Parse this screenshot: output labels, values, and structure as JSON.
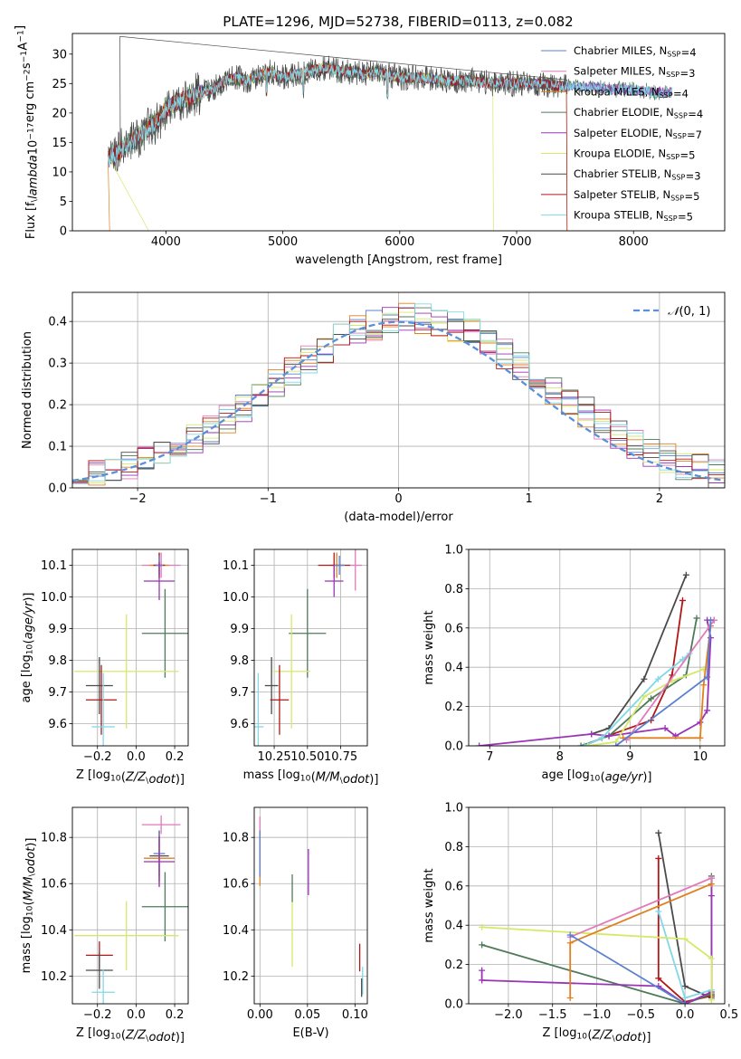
{
  "chart_data": [
    {
      "type": "line",
      "title": "PLATE=1296, MJD=52738, FIBERID=0113, z=0.082",
      "xlabel": "wavelength [Angstrom, rest frame]",
      "ylabel": "Flux [f$_\\lambda$10$^{-17}$ erg cm$^{-2}$ s$^{-1}$ A$^{-1}$]",
      "xlim": [
        3200,
        8780
      ],
      "ylim": [
        0,
        33.5
      ],
      "xticks": [
        "4000",
        "5000",
        "6000",
        "7000",
        "8000"
      ],
      "yticks": [
        "0",
        "5",
        "10",
        "15",
        "20",
        "25",
        "30"
      ],
      "legend": [
        "Chabrier MILES, N$_{SSP}$=4",
        "Salpeter MILES, N$_{SSP}$=3",
        "Kroupa MILES, N$_{SSP}$=4",
        "Chabrier ELODIE, N$_{SSP}$=4",
        "Salpeter ELODIE, N$_{SSP}$=7",
        "Kroupa ELODIE, N$_{SSP}$=5",
        "Chabrier STELIB, N$_{SSP}$=3",
        "Salpeter STELIB, N$_{SSP}$=5",
        "Kroupa STELIB, N$_{SSP}$=5"
      ],
      "legend_position": "upper right",
      "colors": [
        "#5a80d0",
        "#e07ab8",
        "#e08020",
        "#4f7a5a",
        "#9a35b5",
        "#d6e86a",
        "#4a4a4a",
        "#b01818",
        "#80d8e8"
      ],
      "continuum": {
        "x": [
          3500,
          3600,
          3700,
          3800,
          3900,
          4000,
          4100,
          4200,
          4300,
          4400,
          4500,
          4600,
          4700,
          4800,
          4900,
          5000,
          5100,
          5200,
          5300,
          5400,
          5500,
          5600,
          5700,
          5800,
          5900,
          6000,
          6200,
          6400,
          6600,
          6800,
          7000,
          7200,
          7400,
          7600,
          7800,
          8000,
          8200,
          8300
        ],
        "y": [
          12,
          13.5,
          15,
          16.5,
          18,
          20.5,
          22,
          22.5,
          23.5,
          24,
          25.5,
          26,
          25.5,
          26.5,
          27,
          26,
          26.5,
          27,
          27.5,
          27.5,
          27,
          27,
          26.5,
          27,
          26.5,
          26,
          26,
          25.5,
          25.5,
          25,
          25,
          25,
          24.5,
          24.5,
          24,
          24,
          23.5,
          23.5
        ]
      },
      "grid": false
    },
    {
      "type": "histogram",
      "xlabel": "(data-model)/error",
      "ylabel": "Normed distribution",
      "xlim": [
        -2.5,
        2.5
      ],
      "ylim": [
        0,
        0.47
      ],
      "xticks": [
        "−2",
        "−1",
        "0",
        "1",
        "2"
      ],
      "yticks": [
        "0.0",
        "0.1",
        "0.2",
        "0.3",
        "0.4"
      ],
      "legend": [
        "$\\mathcal{N}(0,1)$"
      ],
      "legend_color": "#5b8fd9",
      "legend_position": "upper right",
      "bins": {
        "start": -2.5,
        "width": 0.125,
        "count": 40
      },
      "series_colors": [
        "#5a80d0",
        "#e07ab8",
        "#e08020",
        "#4f7a5a",
        "#9a35b5",
        "#d6e86a",
        "#4a4a4a",
        "#b01818",
        "#80d8e8"
      ],
      "grid": true
    },
    {
      "type": "scatter",
      "xlabel": "Z [log$_{10}$($Z/Z_\\odot$)]",
      "ylabel": "age  [log$_{10}$($age/yr$)]",
      "xlim": [
        -0.33,
        0.27
      ],
      "ylim": [
        9.53,
        10.15
      ],
      "xticks": [
        "−0.2",
        "0.0",
        "0.2"
      ],
      "yticks": [
        "9.6",
        "9.7",
        "9.8",
        "9.9",
        "10.0",
        "10.1"
      ],
      "errorbars": [
        {
          "x": 0.13,
          "y": 10.1,
          "xerr": 0.1,
          "yerr": 0.04,
          "color": "#e07ab8"
        },
        {
          "x": 0.12,
          "y": 10.1,
          "xerr": 0.05,
          "yerr": 0.04,
          "color": "#e08020"
        },
        {
          "x": 0.12,
          "y": 10.1,
          "xerr": 0.03,
          "yerr": 0.04,
          "color": "#b01818"
        },
        {
          "x": 0.12,
          "y": 10.1,
          "xerr": 0.02,
          "yerr": 0.03,
          "color": "#5a80d0"
        },
        {
          "x": 0.12,
          "y": 10.05,
          "xerr": 0.08,
          "yerr": 0.06,
          "color": "#9a35b5"
        },
        {
          "x": 0.15,
          "y": 9.885,
          "xerr": 0.12,
          "yerr": 0.14,
          "color": "#4f7a5a"
        },
        {
          "x": -0.05,
          "y": 9.765,
          "xerr": 0.27,
          "yerr": 0.18,
          "color": "#d6e86a"
        },
        {
          "x": -0.19,
          "y": 9.72,
          "xerr": 0.07,
          "yerr": 0.09,
          "color": "#4a4a4a"
        },
        {
          "x": -0.18,
          "y": 9.675,
          "xerr": 0.08,
          "yerr": 0.11,
          "color": "#b01818"
        },
        {
          "x": -0.17,
          "y": 9.59,
          "xerr": 0.06,
          "yerr": 0.17,
          "color": "#80d8e8"
        }
      ],
      "grid": true
    },
    {
      "type": "scatter",
      "xlabel": "mass [log$_{10}$($M/M_\\odot$)]",
      "ylabel": "",
      "xlim": [
        10.1,
        10.95
      ],
      "ylim": [
        9.53,
        10.15
      ],
      "xticks": [
        "10.25",
        "10.50",
        "10.75"
      ],
      "yticks": [
        "9.6",
        "9.7",
        "9.8",
        "9.9",
        "10.0",
        "10.1"
      ],
      "errorbars": [
        {
          "x": 10.86,
          "y": 10.1,
          "xerr": 0.05,
          "yerr": 0.08,
          "color": "#e07ab8"
        },
        {
          "x": 10.72,
          "y": 10.1,
          "xerr": 0.05,
          "yerr": 0.04,
          "color": "#e08020"
        },
        {
          "x": 10.7,
          "y": 10.1,
          "xerr": 0.12,
          "yerr": 0.04,
          "color": "#b01818"
        },
        {
          "x": 10.74,
          "y": 10.1,
          "xerr": 0.04,
          "yerr": 0.03,
          "color": "#5a80d0"
        },
        {
          "x": 10.7,
          "y": 10.05,
          "xerr": 0.07,
          "yerr": 0.05,
          "color": "#9a35b5"
        },
        {
          "x": 10.5,
          "y": 9.885,
          "xerr": 0.14,
          "yerr": 0.14,
          "color": "#4f7a5a"
        },
        {
          "x": 10.38,
          "y": 9.765,
          "xerr": 0.14,
          "yerr": 0.18,
          "color": "#d6e86a"
        },
        {
          "x": 10.23,
          "y": 9.72,
          "xerr": 0.05,
          "yerr": 0.09,
          "color": "#4a4a4a"
        },
        {
          "x": 10.29,
          "y": 9.675,
          "xerr": 0.07,
          "yerr": 0.11,
          "color": "#b01818"
        },
        {
          "x": 10.13,
          "y": 9.59,
          "xerr": 0.04,
          "yerr": 0.17,
          "color": "#80d8e8"
        }
      ],
      "grid": true
    },
    {
      "type": "line",
      "xlabel": "age  [log$_{10}$($age/yr$)]",
      "ylabel": "mass weight",
      "xlim": [
        6.7,
        10.35
      ],
      "ylim": [
        0,
        1.0
      ],
      "xticks": [
        "7",
        "8",
        "9",
        "10"
      ],
      "yticks": [
        "0.0",
        "0.2",
        "0.4",
        "0.6",
        "0.8",
        "1.0"
      ],
      "series": [
        {
          "color": "#4a4a4a",
          "x": [
            8.45,
            8.7,
            9.2,
            9.8
          ],
          "y": [
            0.06,
            0.09,
            0.34,
            0.87
          ]
        },
        {
          "color": "#b01818",
          "x": [
            8.35,
            8.6,
            9.3,
            9.6,
            9.75
          ],
          "y": [
            0.0,
            0.04,
            0.13,
            0.36,
            0.74
          ]
        },
        {
          "color": "#4f7a5a",
          "x": [
            8.3,
            8.7,
            9.3,
            9.8,
            9.95
          ],
          "y": [
            0.0,
            0.05,
            0.24,
            0.36,
            0.65
          ]
        },
        {
          "color": "#9a35b5",
          "x": [
            6.85,
            8.45,
            8.7,
            9.5,
            9.65,
            10.0,
            10.1,
            10.15,
            10.1,
            10.2
          ],
          "y": [
            0.0,
            0.06,
            0.05,
            0.09,
            0.05,
            0.12,
            0.18,
            0.55,
            0.64,
            0.64
          ]
        },
        {
          "color": "#80d8e8",
          "x": [
            8.35,
            8.6,
            9.4,
            9.75,
            9.85
          ],
          "y": [
            0.0,
            0.04,
            0.34,
            0.44,
            0.47
          ]
        },
        {
          "color": "#d6e86a",
          "x": [
            8.4,
            8.8,
            9.2,
            9.6,
            10.05
          ],
          "y": [
            0.0,
            0.02,
            0.25,
            0.33,
            0.39
          ]
        },
        {
          "color": "#e08020",
          "x": [
            8.9,
            10.0,
            10.05,
            10.15
          ],
          "y": [
            0.04,
            0.04,
            0.31,
            0.61
          ]
        },
        {
          "color": "#e07ab8",
          "x": [
            8.95,
            10.2
          ],
          "y": [
            0.03,
            0.64
          ]
        },
        {
          "color": "#5a80d0",
          "x": [
            8.8,
            10.1,
            10.15
          ],
          "y": [
            0.0,
            0.35,
            0.64
          ]
        }
      ],
      "grid": true
    },
    {
      "type": "scatter",
      "xlabel": "Z [log$_{10}$($Z/Z_\\odot$)]",
      "ylabel": "mass [log$_{10}$($M/M_\\odot$)]",
      "xlim": [
        -0.33,
        0.27
      ],
      "ylim": [
        10.08,
        10.93
      ],
      "xticks": [
        "−0.2",
        "0.0",
        "0.2"
      ],
      "yticks": [
        "10.2",
        "10.4",
        "10.6",
        "10.8"
      ],
      "errorbars": [
        {
          "x": 0.13,
          "y": 10.855,
          "xerr": 0.1,
          "yerr": 0.04,
          "color": "#e07ab8"
        },
        {
          "x": 0.12,
          "y": 10.72,
          "xerr": 0.05,
          "yerr": 0.11,
          "color": "#4a4a4a"
        },
        {
          "x": 0.12,
          "y": 10.71,
          "xerr": 0.08,
          "yerr": 0.12,
          "color": "#e08020"
        },
        {
          "x": 0.12,
          "y": 10.73,
          "xerr": 0.03,
          "yerr": 0.1,
          "color": "#5a80d0"
        },
        {
          "x": 0.12,
          "y": 10.695,
          "xerr": 0.08,
          "yerr": 0.11,
          "color": "#9a35b5"
        },
        {
          "x": 0.15,
          "y": 10.5,
          "xerr": 0.12,
          "yerr": 0.15,
          "color": "#4f7a5a"
        },
        {
          "x": -0.05,
          "y": 10.375,
          "xerr": 0.27,
          "yerr": 0.15,
          "color": "#d6e86a"
        },
        {
          "x": -0.19,
          "y": 10.29,
          "xerr": 0.07,
          "yerr": 0.06,
          "color": "#b01818"
        },
        {
          "x": -0.19,
          "y": 10.225,
          "xerr": 0.07,
          "yerr": 0.08,
          "color": "#4a4a4a"
        },
        {
          "x": -0.17,
          "y": 10.13,
          "xerr": 0.06,
          "yerr": 0.1,
          "color": "#80d8e8"
        }
      ],
      "grid": true
    },
    {
      "type": "scatter",
      "xlabel": "E(B-V)",
      "ylabel": "",
      "xlim": [
        -0.006,
        0.113
      ],
      "ylim": [
        10.08,
        10.93
      ],
      "xticks": [
        "0.00",
        "0.05",
        "0.10"
      ],
      "yticks": [
        "10.2",
        "10.4",
        "10.6",
        "10.8"
      ],
      "errorbars": [
        {
          "x": 0.0,
          "y": 10.84,
          "xerr": 0,
          "yerr": 0.05,
          "color": "#e07ab8"
        },
        {
          "x": 0.0,
          "y": 10.71,
          "xerr": 0,
          "yerr": 0.12,
          "color": "#e08020"
        },
        {
          "x": 0.0,
          "y": 10.73,
          "xerr": 0,
          "yerr": 0.1,
          "color": "#5a80d0"
        },
        {
          "x": 0.034,
          "y": 10.58,
          "xerr": 0,
          "yerr": 0.06,
          "color": "#4f7a5a"
        },
        {
          "x": 0.034,
          "y": 10.38,
          "xerr": 0,
          "yerr": 0.14,
          "color": "#d6e86a"
        },
        {
          "x": 0.051,
          "y": 10.65,
          "xerr": 0,
          "yerr": 0.1,
          "color": "#9a35b5"
        },
        {
          "x": 0.105,
          "y": 10.28,
          "xerr": 0,
          "yerr": 0.06,
          "color": "#b01818"
        },
        {
          "x": 0.108,
          "y": 10.18,
          "xerr": 0,
          "yerr": 0.06,
          "color": "#80d8e8"
        },
        {
          "x": 0.107,
          "y": 10.15,
          "xerr": 0,
          "yerr": 0.04,
          "color": "#4a4a4a"
        }
      ],
      "grid": true
    },
    {
      "type": "line",
      "xlabel": "Z [log$_{10}$($Z/Z_\\odot$)]",
      "ylabel": "mass weight",
      "xlim": [
        -2.45,
        0.45
      ],
      "ylim": [
        0,
        1.0
      ],
      "xticks": [
        "−2.0",
        "−1.5",
        "−1.0",
        "−0.5",
        "0.0",
        "0.5"
      ],
      "yticks": [
        "0.0",
        "0.2",
        "0.4",
        "0.6",
        "0.8",
        "1.0"
      ],
      "series": [
        {
          "color": "#4a4a4a",
          "x": [
            -0.3,
            0.0,
            0.3,
            0.3
          ],
          "y": [
            0.87,
            0.09,
            0.03,
            0.04
          ]
        },
        {
          "color": "#b01818",
          "x": [
            -0.3,
            -0.3,
            0.0,
            0.3,
            0.3
          ],
          "y": [
            0.74,
            0.13,
            0.01,
            0.04,
            0.05
          ]
        },
        {
          "color": "#4f7a5a",
          "x": [
            -2.3,
            0.0,
            0.3,
            0.3
          ],
          "y": [
            0.3,
            0.0,
            0.05,
            0.65
          ]
        },
        {
          "color": "#9a35b5",
          "x": [
            -2.3,
            -2.3,
            -0.3,
            0.0,
            0.3,
            0.3,
            0.3
          ],
          "y": [
            0.17,
            0.12,
            0.09,
            0.0,
            0.06,
            0.55,
            0.64
          ]
        },
        {
          "color": "#80d8e8",
          "x": [
            -0.3,
            0.0,
            0.3
          ],
          "y": [
            0.47,
            0.03,
            0.07
          ]
        },
        {
          "color": "#d6e86a",
          "x": [
            -2.3,
            0.0,
            0.3,
            0.3
          ],
          "y": [
            0.39,
            0.33,
            0.23,
            0.02
          ]
        },
        {
          "color": "#e08020",
          "x": [
            -1.3,
            -1.3,
            0.3
          ],
          "y": [
            0.03,
            0.31,
            0.61
          ]
        },
        {
          "color": "#e07ab8",
          "x": [
            -1.3,
            0.3
          ],
          "y": [
            0.34,
            0.64
          ]
        },
        {
          "color": "#5a80d0",
          "x": [
            -1.3,
            0.0
          ],
          "y": [
            0.35,
            0.0
          ]
        }
      ],
      "grid": true
    }
  ]
}
